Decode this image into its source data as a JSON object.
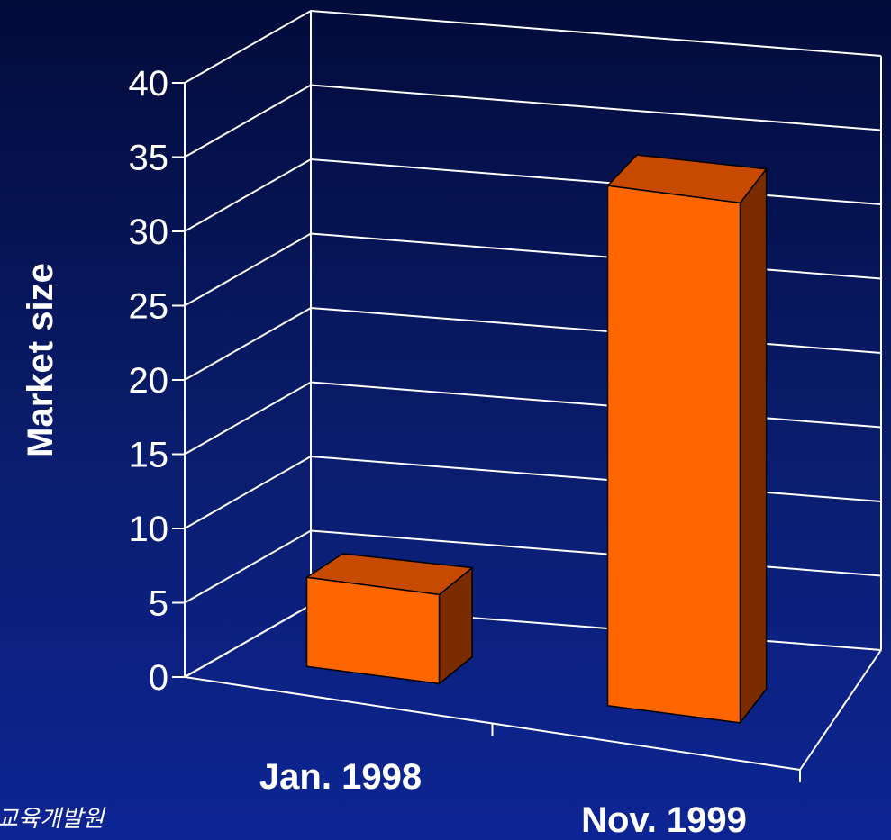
{
  "chart_data": {
    "type": "bar",
    "style": "3d-column",
    "categories": [
      "Jan. 1998",
      "Nov. 1999"
    ],
    "values": [
      6,
      35
    ],
    "ylabel": "Market size",
    "xlabel": "",
    "ylim": [
      0,
      40
    ],
    "yticks": [
      "0",
      "5",
      "10",
      "15",
      "20",
      "25",
      "30",
      "35",
      "40"
    ],
    "grid": true,
    "bar_colors": {
      "front": "#ff6600",
      "top": "#c84a00",
      "side": "#7a2c00"
    }
  },
  "footer": {
    "text": "교육개발원"
  }
}
